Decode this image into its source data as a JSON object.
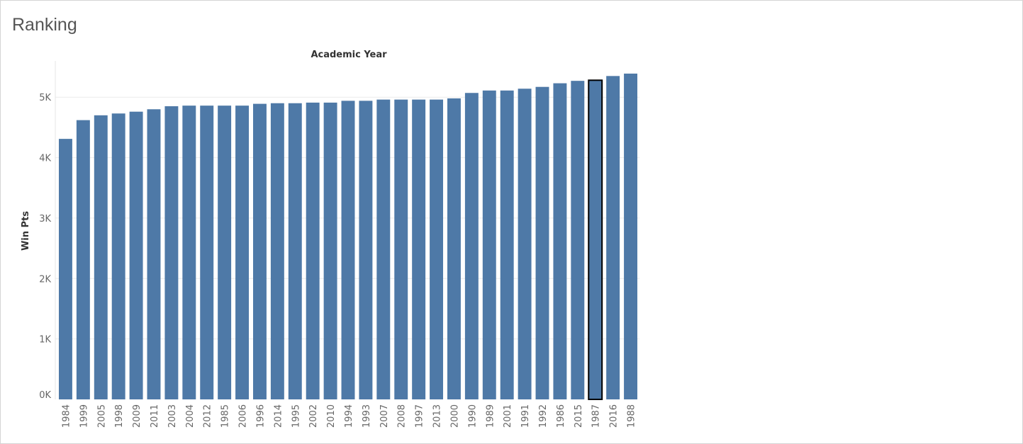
{
  "title": "Ranking",
  "colors": {
    "bar": "#4e79a7",
    "highlight_outline": "#000000",
    "gridline": "#ececec"
  },
  "chart_data": {
    "type": "bar",
    "title": "Academic Year",
    "xlabel": "Academic Year",
    "ylabel": "Win Pts",
    "ylim": [
      0,
      5600
    ],
    "yticks": [
      0,
      1000,
      2000,
      3000,
      4000,
      5000
    ],
    "ytick_labels": [
      "0K",
      "1K",
      "2K",
      "3K",
      "4K",
      "5K"
    ],
    "categories": [
      "1984",
      "1999",
      "2005",
      "1998",
      "2009",
      "2011",
      "2003",
      "2004",
      "2012",
      "1985",
      "2006",
      "1996",
      "2014",
      "1995",
      "2002",
      "2010",
      "1994",
      "1993",
      "2007",
      "2008",
      "1997",
      "2013",
      "2000",
      "1990",
      "1989",
      "2001",
      "1991",
      "1992",
      "1986",
      "2015",
      "1987",
      "2016",
      "1988"
    ],
    "values": [
      4310,
      4620,
      4700,
      4730,
      4760,
      4800,
      4850,
      4860,
      4860,
      4860,
      4860,
      4890,
      4900,
      4900,
      4910,
      4910,
      4940,
      4940,
      4960,
      4960,
      4960,
      4960,
      4980,
      5070,
      5110,
      5110,
      5140,
      5170,
      5230,
      5270,
      5280,
      5350,
      5390
    ],
    "highlighted_category": "1987",
    "grid": true,
    "legend": "none"
  }
}
